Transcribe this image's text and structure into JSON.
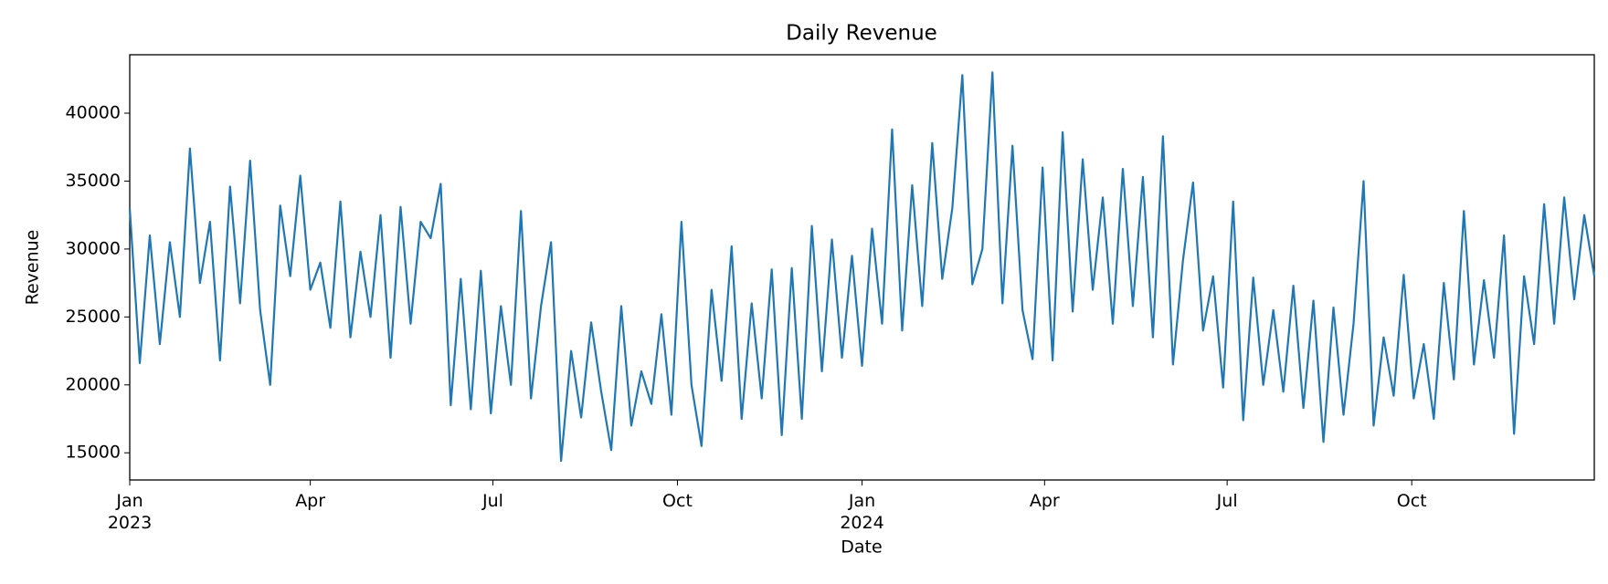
{
  "chart_data": {
    "type": "line",
    "title": "Daily Revenue",
    "xlabel": "Date",
    "ylabel": "Revenue",
    "color": "#1f77b4",
    "x": [
      0,
      5,
      10,
      15,
      20,
      25,
      30,
      35,
      40,
      45,
      50,
      55,
      60,
      65,
      70,
      75,
      80,
      85,
      90,
      95,
      100,
      105,
      110,
      115,
      120,
      125,
      130,
      135,
      140,
      145,
      150,
      155,
      160,
      165,
      170,
      175,
      180,
      185,
      190,
      195,
      200,
      205,
      210,
      215,
      220,
      225,
      230,
      235,
      240,
      245,
      250,
      255,
      260,
      265,
      270,
      275,
      280,
      285,
      290,
      295,
      300,
      305,
      310,
      315,
      320,
      325,
      330,
      335,
      340,
      345,
      350,
      355,
      360,
      365,
      370,
      375,
      380,
      385,
      390,
      395,
      400,
      405,
      410,
      415,
      420,
      425,
      430,
      435,
      440,
      445,
      450,
      455,
      460,
      465,
      470,
      475,
      480,
      485,
      490,
      495,
      500,
      505,
      510,
      515,
      520,
      525,
      530,
      535,
      540,
      545,
      550,
      555,
      560,
      565,
      570,
      575,
      580,
      585,
      590,
      595,
      600,
      605,
      610,
      615,
      620,
      625,
      630,
      635,
      640,
      645,
      650,
      655,
      660,
      665,
      670,
      675,
      680,
      685,
      690,
      695,
      700,
      705,
      710,
      715,
      720,
      725,
      730
    ],
    "values": [
      33000,
      21600,
      31000,
      23000,
      30500,
      25000,
      37400,
      27500,
      32000,
      21800,
      34600,
      26000,
      36500,
      25500,
      20000,
      33200,
      28000,
      35400,
      27000,
      29000,
      24200,
      33500,
      23500,
      29800,
      25000,
      32500,
      22000,
      33100,
      24500,
      32000,
      30800,
      34800,
      18500,
      27800,
      18200,
      28400,
      17900,
      25800,
      20000,
      32800,
      19000,
      25800,
      30500,
      14400,
      22500,
      17600,
      24600,
      19500,
      15200,
      25800,
      17000,
      21000,
      18600,
      25200,
      17800,
      32000,
      20000,
      15500,
      27000,
      20300,
      30200,
      17500,
      26000,
      19000,
      28500,
      16300,
      28600,
      17500,
      31700,
      21000,
      30700,
      22000,
      29500,
      21400,
      31500,
      24500,
      38800,
      24000,
      34700,
      25800,
      37800,
      27800,
      33000,
      42800,
      27400,
      30000,
      43000,
      26000,
      37600,
      25500,
      21900,
      36000,
      21800,
      38600,
      25400,
      36600,
      27000,
      33800,
      24500,
      35900,
      25800,
      35300,
      23500,
      38300,
      21500,
      29200,
      34900,
      24000,
      28000,
      19800,
      33500,
      17400,
      27900,
      20000,
      25500,
      19500,
      27300,
      18300,
      26200,
      15800,
      25700,
      17800,
      24500,
      35000,
      17000,
      23500,
      19200,
      28100,
      19000,
      23000,
      17500,
      27500,
      20400,
      32800,
      21500,
      27700,
      22000,
      31000,
      16400,
      28000,
      23000,
      33300,
      24500,
      33800,
      26300,
      32500,
      28000
    ],
    "xlim": [
      0,
      730
    ],
    "xticks": [
      {
        "value": 0,
        "label": "Jan\n2023"
      },
      {
        "value": 90,
        "label": "Apr"
      },
      {
        "value": 181,
        "label": "Jul"
      },
      {
        "value": 273,
        "label": "Oct"
      },
      {
        "value": 365,
        "label": "Jan\n2024"
      },
      {
        "value": 456,
        "label": "Apr"
      },
      {
        "value": 547,
        "label": "Jul"
      },
      {
        "value": 639,
        "label": "Oct"
      }
    ],
    "ylim": [
      13000,
      44300
    ],
    "yticks": [
      15000,
      20000,
      25000,
      30000,
      35000,
      40000
    ]
  }
}
